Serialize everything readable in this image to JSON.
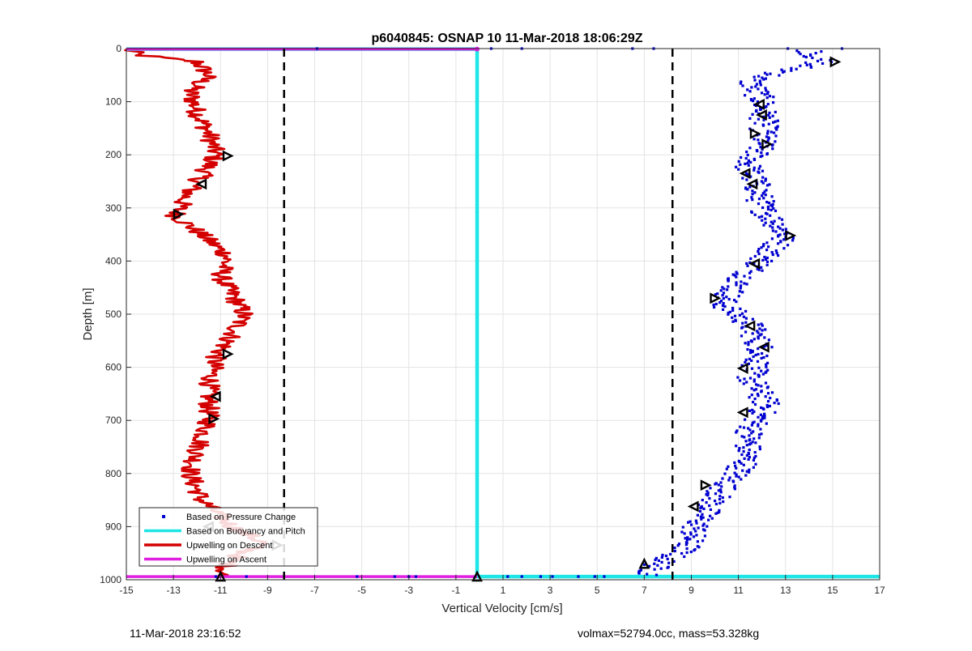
{
  "chart_data": {
    "type": "scatter",
    "title": "p6040845: OSNAP 10 11-Mar-2018 18:06:29Z",
    "xlabel": "Vertical Velocity [cm/s]",
    "ylabel": "Depth [m]",
    "xlim": [
      -15,
      17
    ],
    "ylim": [
      0,
      1000
    ],
    "y_reversed": true,
    "grid": true,
    "legend_position": "bottom-left",
    "x_ticks": [
      "-15",
      "-13",
      "-11",
      "-9",
      "-7",
      "-5",
      "-3",
      "-1",
      "1",
      "3",
      "5",
      "7",
      "9",
      "11",
      "13",
      "15",
      "17"
    ],
    "y_ticks": [
      "0",
      "100",
      "200",
      "300",
      "400",
      "500",
      "600",
      "700",
      "800",
      "900",
      "1000"
    ],
    "reference_lines": [
      {
        "x": -8.3,
        "style": "dashed",
        "color": "#000000"
      },
      {
        "x": 8.2,
        "style": "dashed",
        "color": "#000000"
      }
    ],
    "series": [
      {
        "name": "Based on Pressure Change",
        "kind": "points",
        "color": "#0000d0",
        "profile": [
          [
            0,
            14.0
          ],
          [
            25,
            14.5
          ],
          [
            60,
            11.5
          ],
          [
            100,
            12.0
          ],
          [
            140,
            12.1
          ],
          [
            180,
            12.0
          ],
          [
            220,
            11.4
          ],
          [
            260,
            11.8
          ],
          [
            300,
            12.0
          ],
          [
            350,
            13.0
          ],
          [
            400,
            12.0
          ],
          [
            440,
            11.0
          ],
          [
            480,
            10.3
          ],
          [
            520,
            11.5
          ],
          [
            570,
            12.0
          ],
          [
            620,
            11.5
          ],
          [
            670,
            12.2
          ],
          [
            720,
            11.5
          ],
          [
            780,
            11.3
          ],
          [
            820,
            10.5
          ],
          [
            860,
            9.8
          ],
          [
            900,
            9.2
          ],
          [
            940,
            8.8
          ],
          [
            970,
            7.6
          ],
          [
            990,
            7.2
          ]
        ],
        "spread": 0.6
      },
      {
        "name": "Based on Buoyancy and Pitch",
        "kind": "line",
        "color": "#1ee6e6",
        "points": [
          [
            -15,
            1
          ],
          [
            -0.1,
            1
          ],
          [
            -0.1,
            994
          ],
          [
            17,
            994
          ]
        ]
      },
      {
        "name": "Upwelling on Descent",
        "kind": "line",
        "color": "#d40000",
        "profile": [
          [
            0,
            -15.0
          ],
          [
            12,
            -14.5
          ],
          [
            25,
            -12.0
          ],
          [
            50,
            -11.5
          ],
          [
            80,
            -12.3
          ],
          [
            120,
            -12.0
          ],
          [
            160,
            -11.5
          ],
          [
            200,
            -11.2
          ],
          [
            240,
            -11.8
          ],
          [
            280,
            -12.5
          ],
          [
            315,
            -12.9
          ],
          [
            350,
            -11.8
          ],
          [
            390,
            -10.7
          ],
          [
            430,
            -11.0
          ],
          [
            470,
            -10.4
          ],
          [
            500,
            -10.0
          ],
          [
            540,
            -10.5
          ],
          [
            580,
            -11.2
          ],
          [
            640,
            -11.5
          ],
          [
            700,
            -11.5
          ],
          [
            760,
            -12.0
          ],
          [
            800,
            -12.3
          ],
          [
            850,
            -11.8
          ],
          [
            900,
            -10.5
          ],
          [
            930,
            -9.2
          ],
          [
            960,
            -10.5
          ],
          [
            994,
            -11.0
          ]
        ],
        "spread": 0.45
      },
      {
        "name": "Upwelling on Ascent",
        "kind": "line",
        "color": "#e020e0",
        "points": [
          [
            -15,
            1
          ],
          [
            -0.1,
            1
          ],
          [
            -0.1,
            994
          ],
          [
            17,
            994
          ]
        ]
      }
    ],
    "surface_points": [
      [
        -6.9,
        0
      ],
      [
        0.5,
        0
      ],
      [
        1.8,
        0
      ],
      [
        6.5,
        0
      ],
      [
        7.4,
        0
      ],
      [
        13.1,
        0
      ],
      [
        15.4,
        0
      ],
      [
        -11.2,
        994
      ],
      [
        -9.9,
        994
      ],
      [
        -5.2,
        994
      ],
      [
        -3.6,
        994
      ],
      [
        -3.0,
        994
      ],
      [
        -2.7,
        994
      ],
      [
        1.2,
        994
      ],
      [
        1.8,
        994
      ],
      [
        2.6,
        994
      ],
      [
        3.1,
        994
      ],
      [
        4.2,
        994
      ],
      [
        4.9,
        994
      ],
      [
        5.3,
        994
      ]
    ],
    "triangle_markers": [
      {
        "x": 15.1,
        "y": 25,
        "dir": "right"
      },
      {
        "x": 11.9,
        "y": 105,
        "dir": "left"
      },
      {
        "x": 12.0,
        "y": 125,
        "dir": "left"
      },
      {
        "x": 11.7,
        "y": 160,
        "dir": "right"
      },
      {
        "x": 12.2,
        "y": 180,
        "dir": "right"
      },
      {
        "x": 11.3,
        "y": 235,
        "dir": "left"
      },
      {
        "x": 11.6,
        "y": 255,
        "dir": "left"
      },
      {
        "x": 13.2,
        "y": 352,
        "dir": "right"
      },
      {
        "x": 11.7,
        "y": 405,
        "dir": "left"
      },
      {
        "x": 10.0,
        "y": 470,
        "dir": "right"
      },
      {
        "x": 11.5,
        "y": 522,
        "dir": "left"
      },
      {
        "x": 12.1,
        "y": 562,
        "dir": "left"
      },
      {
        "x": 11.2,
        "y": 602,
        "dir": "left"
      },
      {
        "x": 11.2,
        "y": 685,
        "dir": "left"
      },
      {
        "x": 9.6,
        "y": 822,
        "dir": "right"
      },
      {
        "x": 9.1,
        "y": 862,
        "dir": "left"
      },
      {
        "x": 7.0,
        "y": 970,
        "dir": "up"
      },
      {
        "x": -10.7,
        "y": 202,
        "dir": "right"
      },
      {
        "x": -11.8,
        "y": 255,
        "dir": "left"
      },
      {
        "x": -12.8,
        "y": 312,
        "dir": "right"
      },
      {
        "x": -10.7,
        "y": 575,
        "dir": "right"
      },
      {
        "x": -11.2,
        "y": 655,
        "dir": "left"
      },
      {
        "x": -11.3,
        "y": 697,
        "dir": "right"
      },
      {
        "x": -11.5,
        "y": 900,
        "dir": "left"
      },
      {
        "x": -8.6,
        "y": 935,
        "dir": "right"
      },
      {
        "x": -11.0,
        "y": 994,
        "dir": "up"
      },
      {
        "x": -0.1,
        "y": 994,
        "dir": "up"
      }
    ]
  },
  "footer": {
    "left": "11-Mar-2018 23:16:52",
    "right": "volmax=52794.0cc, mass=53.328kg"
  }
}
